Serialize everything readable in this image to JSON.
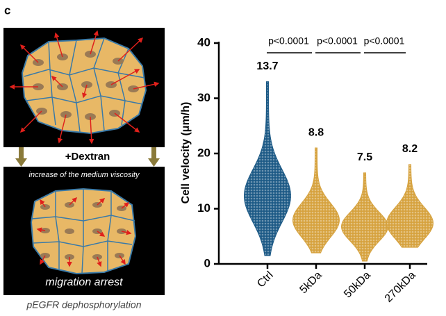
{
  "panel_label": "c",
  "diagram": {
    "treatment": "+Dextran",
    "effect": "increase of the medium viscosity",
    "outcome": "migration arrest",
    "caption": "pEGFR dephosphorylation"
  },
  "chart_data": {
    "type": "swarm",
    "ylabel": "Cell velocity (μm/h)",
    "categories": [
      "Ctrl",
      "5kDa",
      "50kDa",
      "270kDa"
    ],
    "values": [
      13.7,
      8.8,
      7.5,
      8.2
    ],
    "ranges": [
      [
        1.5,
        33
      ],
      [
        2,
        21
      ],
      [
        0.5,
        16.5
      ],
      [
        3,
        18
      ]
    ],
    "colors": [
      "#1d5a86",
      "#d6a23e",
      "#d6a23e",
      "#d6a23e"
    ],
    "annotations": [
      "p<0.0001",
      "p<0.0001",
      "p<0.0001"
    ],
    "ylim": [
      0,
      40
    ],
    "yticks": [
      0,
      10,
      20,
      30,
      40
    ]
  }
}
